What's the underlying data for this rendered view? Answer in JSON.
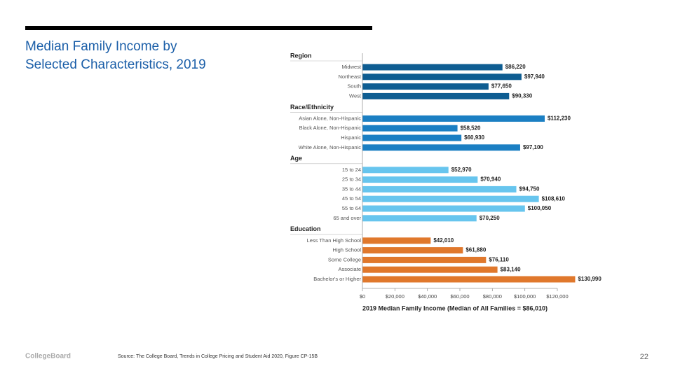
{
  "title": "Median Family Income by Selected Characteristics, 2019",
  "chart_data": {
    "type": "bar",
    "orientation": "horizontal",
    "xlabel": "2019 Median Family Income (Median of All Families = $86,010)",
    "xlim": [
      0,
      120000
    ],
    "xticks": [
      {
        "value": 0,
        "label": "$0"
      },
      {
        "value": 20000,
        "label": "$20,000"
      },
      {
        "value": 40000,
        "label": "$40,000"
      },
      {
        "value": 60000,
        "label": "$60,000"
      },
      {
        "value": 80000,
        "label": "$80,000"
      },
      {
        "value": 100000,
        "label": "$100,000"
      },
      {
        "value": 120000,
        "label": "$120,000"
      }
    ],
    "groups": [
      {
        "name": "Region",
        "color": "#0e5d92",
        "categories": [
          "Midwest",
          "Northeast",
          "South",
          "West"
        ],
        "values": [
          86220,
          97940,
          77650,
          90330
        ],
        "value_labels": [
          "$86,220",
          "$97,940",
          "$77,650",
          "$90,330"
        ]
      },
      {
        "name": "Race/Ethnicity",
        "color": "#1b7fc3",
        "categories": [
          "Asian Alone, Non-Hispanic",
          "Black Alone, Non-Hispanic",
          "Hispanic",
          "White Alone, Non-Hispanic"
        ],
        "values": [
          112230,
          58520,
          60930,
          97100
        ],
        "value_labels": [
          "$112,230",
          "$58,520",
          "$60,930",
          "$97,100"
        ]
      },
      {
        "name": "Age",
        "color": "#67c5ee",
        "categories": [
          "15 to 24",
          "25 to 34",
          "35 to 44",
          "45 to 54",
          "55 to 64",
          "65 and over"
        ],
        "values": [
          52970,
          70940,
          94750,
          108610,
          100050,
          70250
        ],
        "value_labels": [
          "$52,970",
          "$70,940",
          "$94,750",
          "$108,610",
          "$100,050",
          "$70,250"
        ]
      },
      {
        "name": "Education",
        "color": "#e0782c",
        "categories": [
          "Less Than High School",
          "High School",
          "Some College",
          "Associate",
          "Bachelor's or Higher"
        ],
        "values": [
          42010,
          61880,
          76110,
          83140,
          130990
        ],
        "value_labels": [
          "$42,010",
          "$61,880",
          "$76,110",
          "$83,140",
          "$130,990"
        ]
      }
    ]
  },
  "footer": {
    "logo": "CollegeBoard",
    "source": "Source: The College Board, Trends in College Pricing and Student Aid 2020, Figure CP-15B",
    "page": "22"
  }
}
